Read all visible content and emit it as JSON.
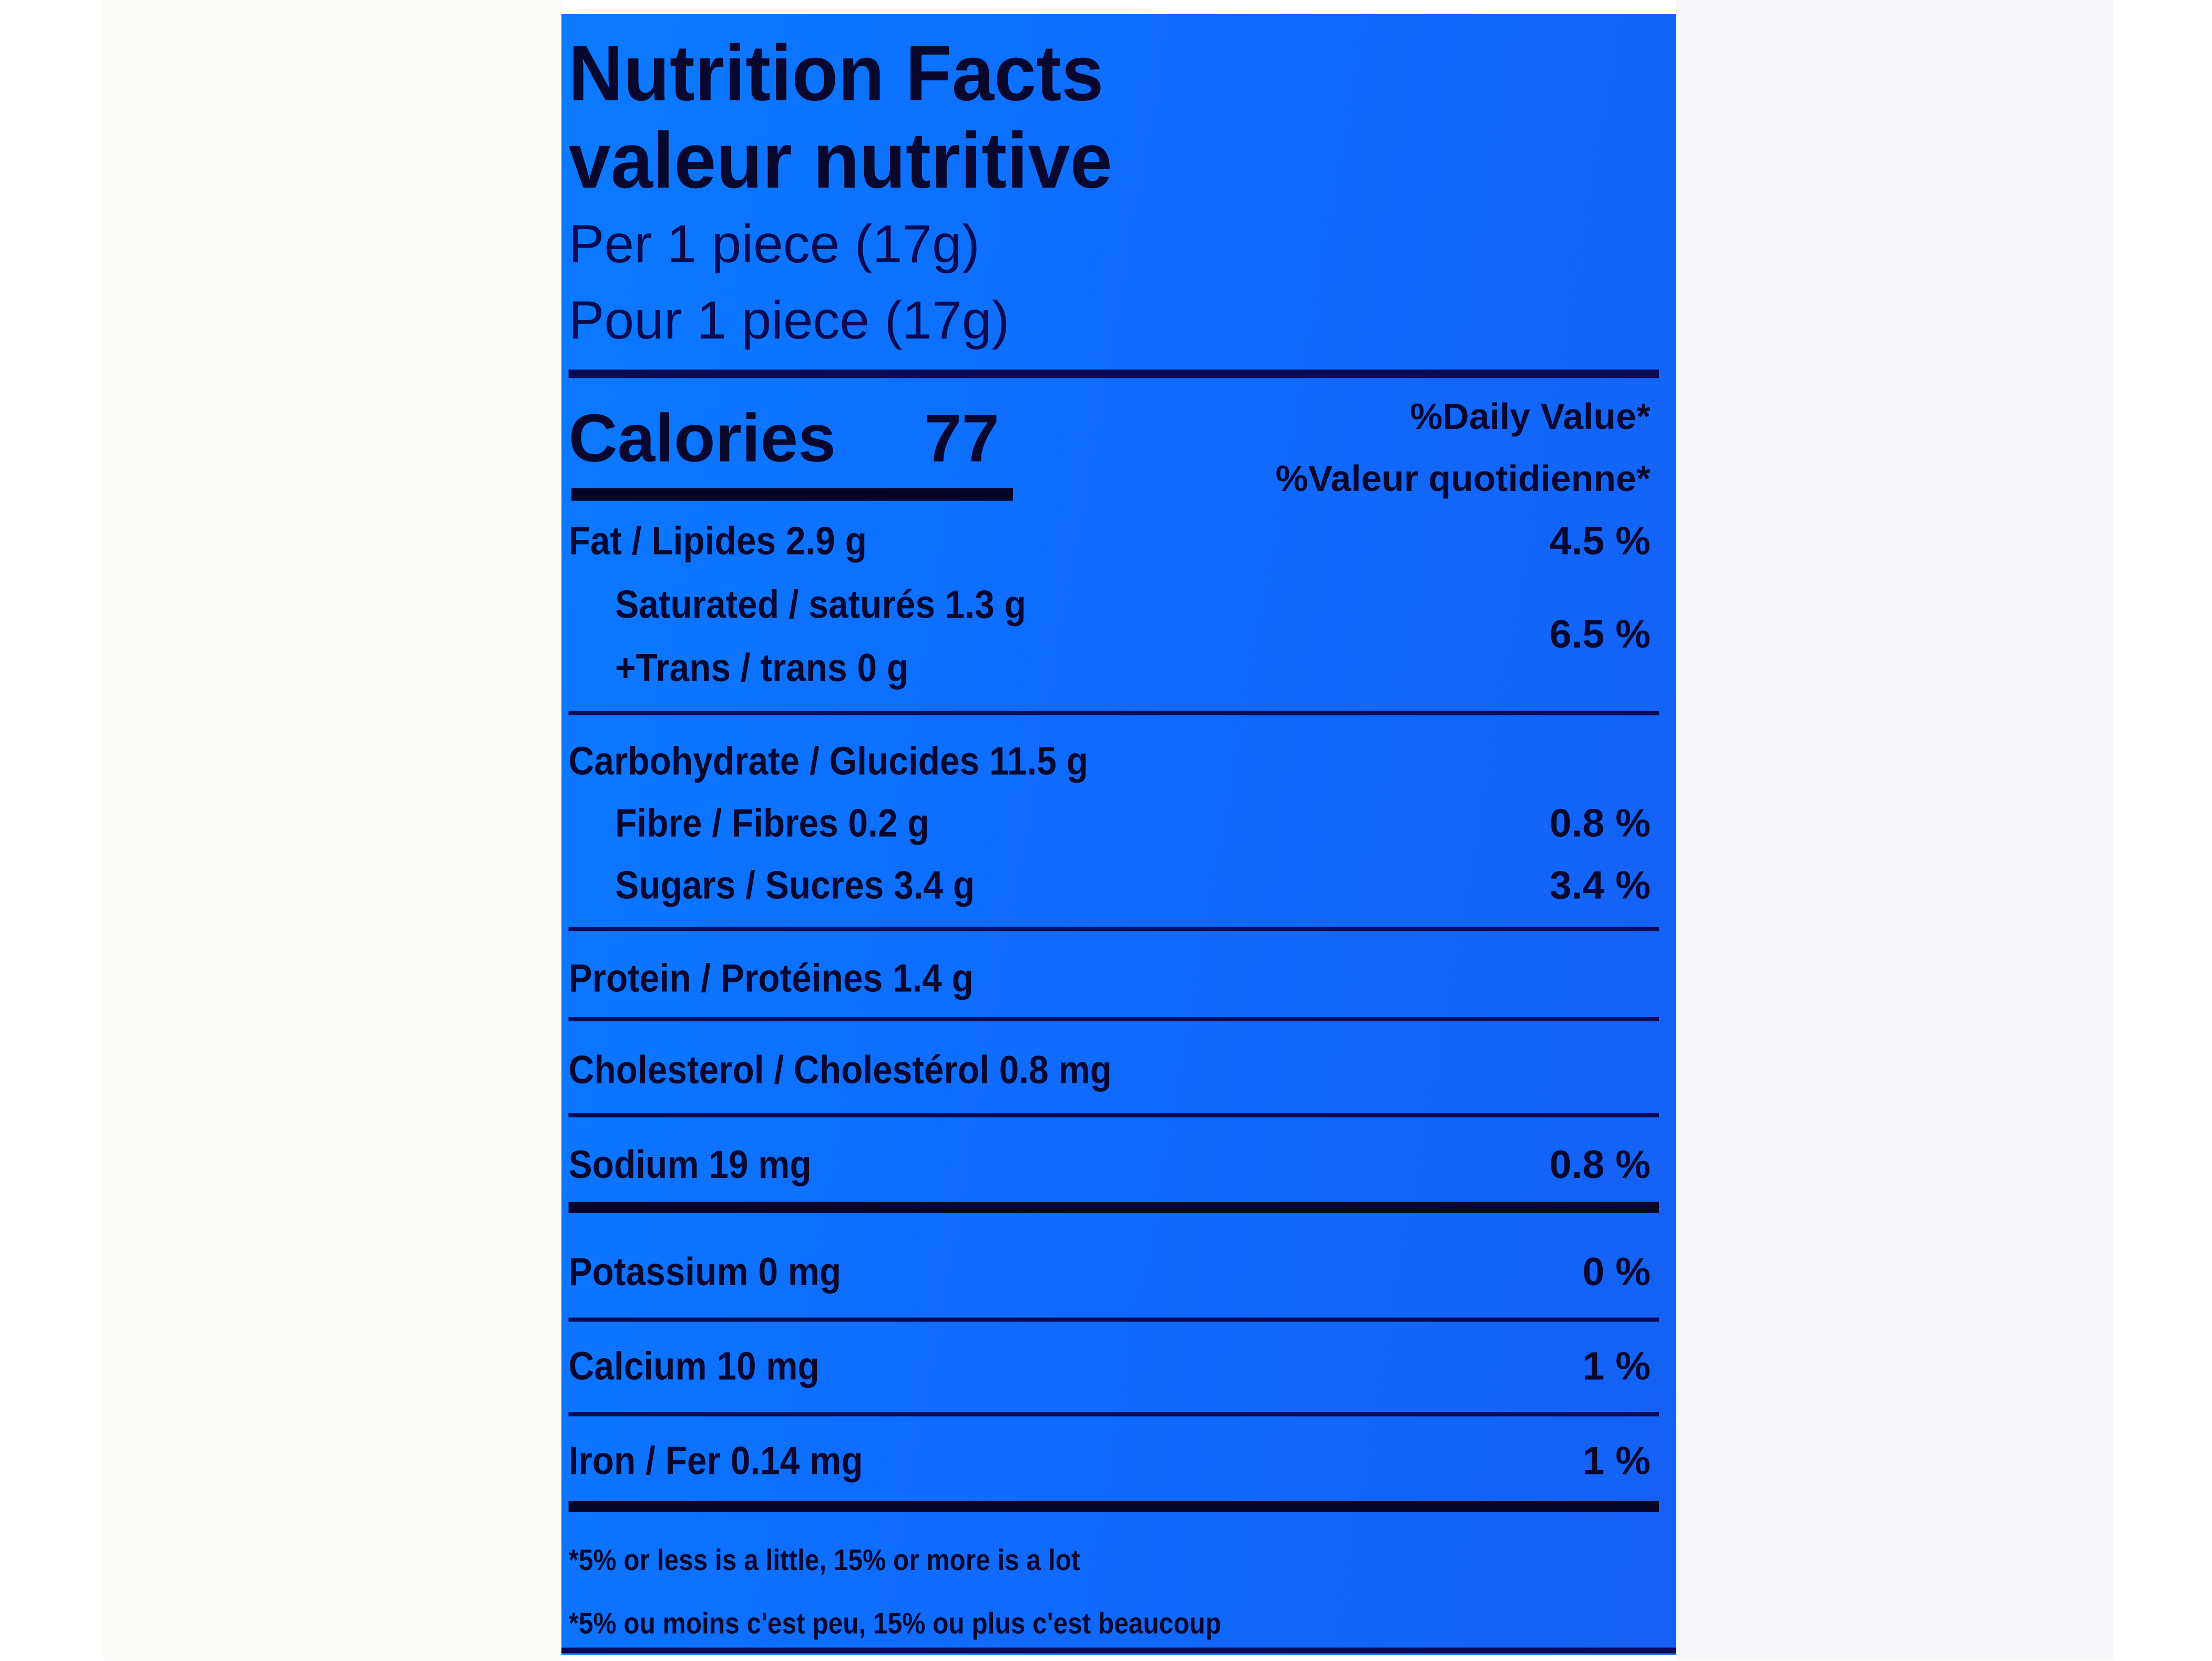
{
  "label": {
    "title_en": "Nutrition Facts",
    "title_fr": "valeur nutritive",
    "serving_en": "Per 1 piece (17g)",
    "serving_fr": "Pour 1 piece (17g)",
    "calories_label": "Calories",
    "calories_value": "77",
    "dv_header_en": "%Daily Value*",
    "dv_header_fr": "%Valeur quotidienne*",
    "rows": [
      {
        "text": "Fat / Lipides 2.9 g",
        "dv": "4.5 %"
      },
      {
        "text": "Saturated / saturés 1.3 g",
        "dv": "6.5 %"
      },
      {
        "text": "+Trans / trans 0 g",
        "dv": ""
      },
      {
        "text": "Carbohydrate / Glucides 11.5 g",
        "dv": ""
      },
      {
        "text": "Fibre / Fibres 0.2 g",
        "dv": "0.8 %"
      },
      {
        "text": "Sugars / Sucres 3.4 g",
        "dv": "3.4 %"
      },
      {
        "text": "Protein / Protéines 1.4 g",
        "dv": ""
      },
      {
        "text": "Cholesterol / Cholestérol 0.8 mg",
        "dv": ""
      },
      {
        "text": "Sodium 19 mg",
        "dv": "0.8 %"
      },
      {
        "text": "Potassium 0 mg",
        "dv": "0 %"
      },
      {
        "text": "Calcium  10 mg",
        "dv": "1 %"
      },
      {
        "text": "Iron / Fer 0.14 mg",
        "dv": "1 %"
      }
    ],
    "footnote_en": "*5% or less is a little, 15% or more is a lot",
    "footnote_fr": "*5% ou moins c'est peu, 15% ou plus c'est beaucoup",
    "colors": {
      "background": "#0f6cff",
      "text": "#08082e",
      "rules": "#0a0a55"
    }
  }
}
